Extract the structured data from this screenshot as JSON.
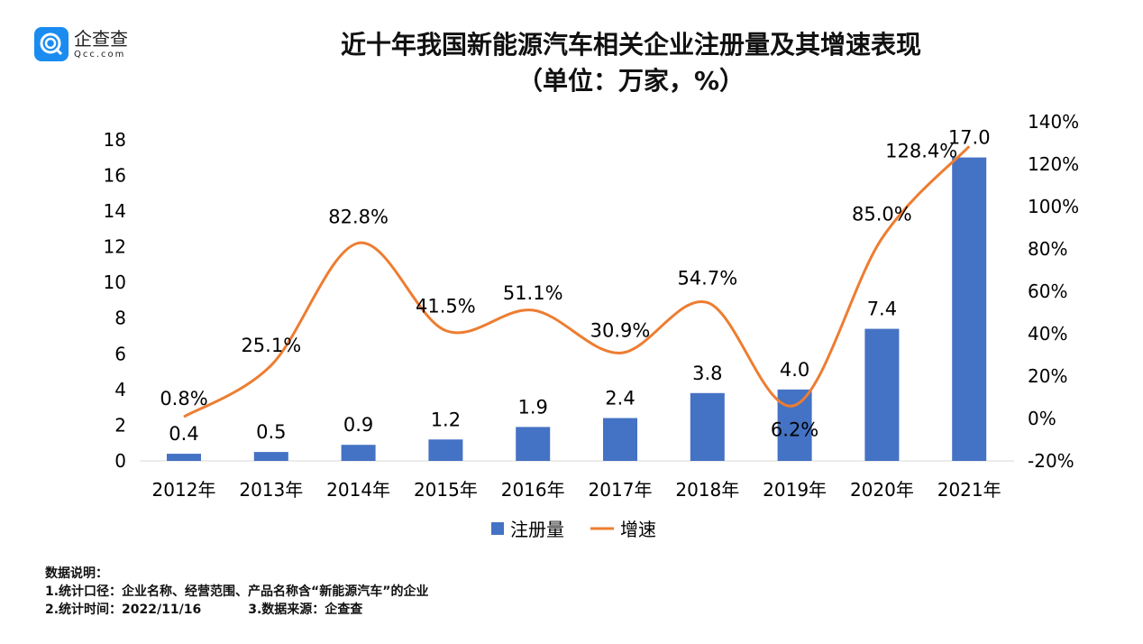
{
  "logo": {
    "name_cn": "企查查",
    "name_en": "Qcc.com"
  },
  "title_line1": "近十年我国新能源汽车相关企业注册量及其增速表现",
  "title_line2": "（单位：万家，%）",
  "chart_data": {
    "type": "bar+line",
    "categories": [
      "2012年",
      "2013年",
      "2014年",
      "2015年",
      "2016年",
      "2017年",
      "2018年",
      "2019年",
      "2020年",
      "2021年"
    ],
    "series": [
      {
        "name": "注册量",
        "type": "bar",
        "axis": "left",
        "color": "#4472c4",
        "values": [
          0.4,
          0.5,
          0.9,
          1.2,
          1.9,
          2.4,
          3.8,
          4.0,
          7.4,
          17.0
        ],
        "labels": [
          "0.4",
          "0.5",
          "0.9",
          "1.2",
          "1.9",
          "2.4",
          "3.8",
          "4.0",
          "7.4",
          "17.0"
        ]
      },
      {
        "name": "增速",
        "type": "line",
        "axis": "right",
        "color": "#ed7d31",
        "smooth": true,
        "values": [
          0.8,
          25.1,
          82.8,
          41.5,
          51.1,
          30.9,
          54.7,
          6.2,
          85.0,
          128.4
        ],
        "labels": [
          "0.8%",
          "25.1%",
          "82.8%",
          "41.5%",
          "51.1%",
          "30.9%",
          "54.7%",
          "6.2%",
          "85.0%",
          "128.4%"
        ]
      }
    ],
    "left_axis": {
      "ticks": [
        "0",
        "2",
        "4",
        "6",
        "8",
        "10",
        "12",
        "14",
        "16",
        "18"
      ],
      "tick_values": [
        0,
        2,
        4,
        6,
        8,
        10,
        12,
        14,
        16,
        18
      ],
      "range": [
        0,
        19
      ]
    },
    "right_axis": {
      "ticks": [
        "-20%",
        "0%",
        "20%",
        "40%",
        "60%",
        "80%",
        "100%",
        "120%",
        "140%"
      ],
      "tick_values": [
        -20,
        0,
        20,
        40,
        60,
        80,
        100,
        120,
        140
      ],
      "range": [
        -20,
        140
      ]
    },
    "legend": {
      "placement": "bottom",
      "items": [
        "注册量",
        "增速"
      ]
    },
    "grid": false
  },
  "notes": {
    "heading": "数据说明：",
    "line1": "1.统计口径：企业名称、经营范围、产品名称含“新能源汽车”的企业",
    "line2a": "2.统计时间：2022/11/16",
    "line2b": "3.数据来源：企查查"
  }
}
